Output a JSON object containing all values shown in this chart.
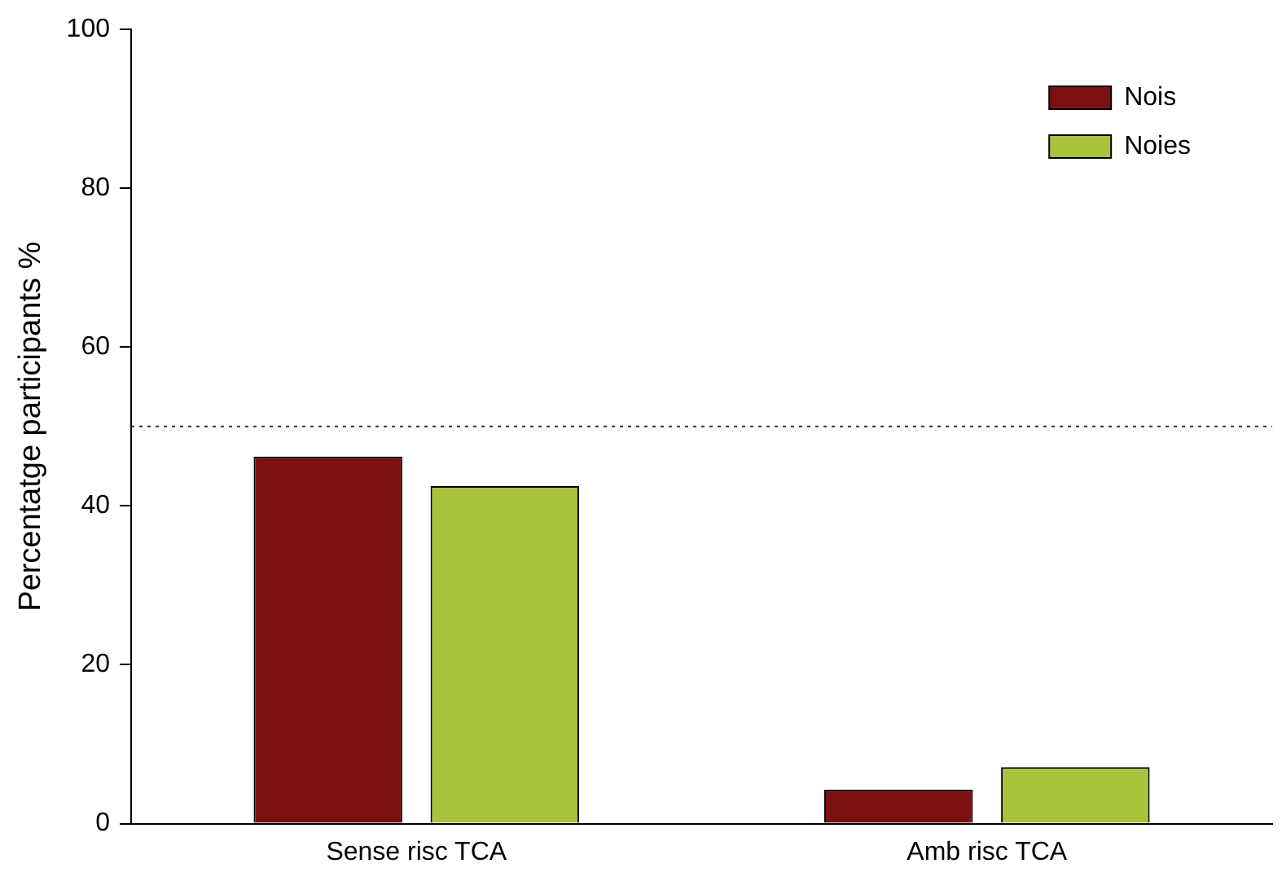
{
  "chart_data": {
    "type": "bar",
    "ylabel": "Percentatge participants %",
    "categories": [
      "Sense risc TCA",
      "Amb risc TCA"
    ],
    "series": [
      {
        "name": "Nois",
        "color": "#7b1113",
        "values": [
          46.2,
          4.3
        ]
      },
      {
        "name": "Noies",
        "color": "#a8c23c",
        "values": [
          42.5,
          7.1
        ]
      }
    ],
    "ylim": [
      0,
      100
    ],
    "yticks": [
      0,
      20,
      40,
      60,
      80,
      100
    ],
    "grid": false,
    "legend": "top right",
    "ref_lines": [
      {
        "axis": "y",
        "value": 50,
        "line_style": "dotted",
        "color": "#333333"
      }
    ]
  }
}
